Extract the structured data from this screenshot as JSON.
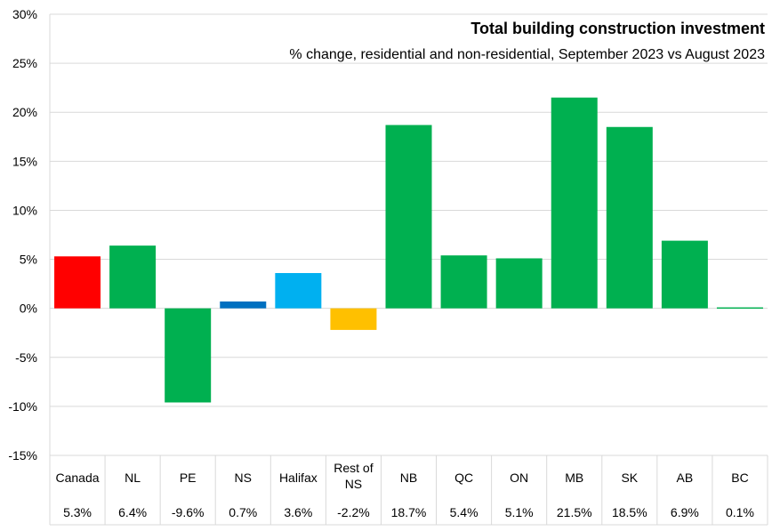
{
  "chart_data": {
    "type": "bar",
    "title": "Total building construction investment",
    "subtitle": "% change, residential and non-residential, September 2023 vs August 2023",
    "xlabel": "",
    "ylabel": "",
    "ylim": [
      -15,
      30
    ],
    "yticks": [
      30,
      25,
      20,
      15,
      10,
      5,
      0,
      -5,
      -10,
      -15
    ],
    "ytick_labels": [
      "30%",
      "25%",
      "20%",
      "15%",
      "10%",
      "5%",
      "0%",
      "-5%",
      "-10%",
      "-15%"
    ],
    "grid": true,
    "legend": "none",
    "categories": [
      "Canada",
      "NL",
      "PE",
      "NS",
      "Halifax",
      "Rest of NS",
      "NB",
      "QC",
      "ON",
      "MB",
      "SK",
      "AB",
      "BC"
    ],
    "category_lines": [
      [
        "Canada"
      ],
      [
        "NL"
      ],
      [
        "PE"
      ],
      [
        "NS"
      ],
      [
        "Halifax"
      ],
      [
        "Rest of",
        "NS"
      ],
      [
        "NB"
      ],
      [
        "QC"
      ],
      [
        "ON"
      ],
      [
        "MB"
      ],
      [
        "SK"
      ],
      [
        "AB"
      ],
      [
        "BC"
      ]
    ],
    "values": [
      5.3,
      6.4,
      -9.6,
      0.7,
      3.6,
      -2.2,
      18.7,
      5.4,
      5.1,
      21.5,
      18.5,
      6.9,
      0.1
    ],
    "value_labels": [
      "5.3%",
      "6.4%",
      "-9.6%",
      "0.7%",
      "3.6%",
      "-2.2%",
      "18.7%",
      "5.4%",
      "5.1%",
      "21.5%",
      "18.5%",
      "6.9%",
      "0.1%"
    ],
    "bar_colors": [
      "#ff0000",
      "#00b050",
      "#00b050",
      "#0070c0",
      "#00b0f0",
      "#ffc000",
      "#00b050",
      "#00b050",
      "#00b050",
      "#00b050",
      "#00b050",
      "#00b050",
      "#00b050"
    ]
  }
}
